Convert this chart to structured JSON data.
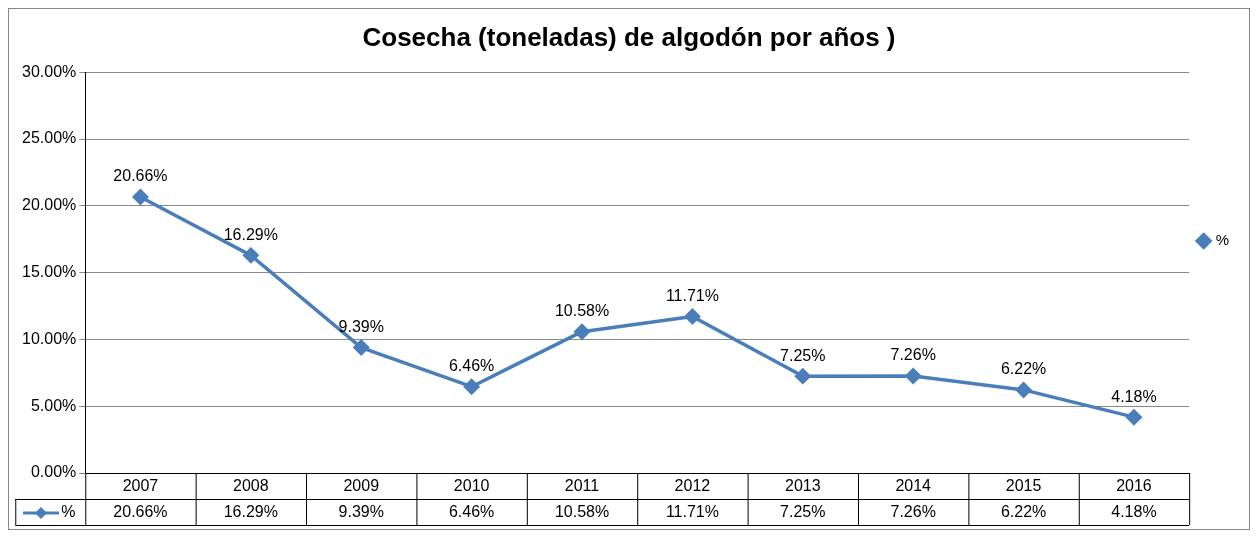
{
  "chart_data": {
    "type": "line",
    "title": "Cosecha (toneladas) de algodón por años )",
    "categories": [
      "2007",
      "2008",
      "2009",
      "2010",
      "2011",
      "2012",
      "2013",
      "2014",
      "2015",
      "2016"
    ],
    "series": [
      {
        "name": "%",
        "color": "#4a7ebb",
        "values": [
          20.66,
          16.29,
          9.39,
          6.46,
          10.58,
          11.71,
          7.25,
          7.26,
          6.22,
          4.18
        ],
        "value_labels": [
          "20.66%",
          "16.29%",
          "9.39%",
          "6.46%",
          "10.58%",
          "11.71%",
          "7.25%",
          "7.26%",
          "6.22%",
          "4.18%"
        ]
      }
    ],
    "ylim": [
      0,
      30
    ],
    "yticks": [
      {
        "value": 0,
        "label": "0.00%"
      },
      {
        "value": 5,
        "label": "5.00%"
      },
      {
        "value": 10,
        "label": "10.00%"
      },
      {
        "value": 15,
        "label": "15.00%"
      },
      {
        "value": 20,
        "label": "20.00%"
      },
      {
        "value": 25,
        "label": "25.00%"
      },
      {
        "value": 30,
        "label": "30.00%"
      }
    ],
    "grid": "y",
    "legend": "right",
    "marker": "diamond",
    "line_style": "solid"
  }
}
